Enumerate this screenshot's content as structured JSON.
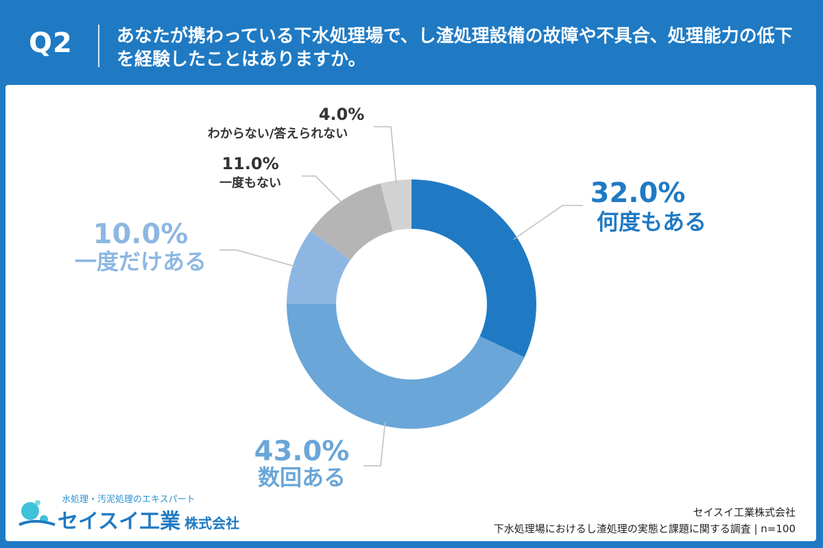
{
  "header": {
    "q_label": "Q2",
    "question": "あなたが携わっている下水処理場で、し渣処理設備の故障や不具合、処理能力の低下を経験したことはありますか。"
  },
  "chart_data": {
    "type": "pie",
    "donut": true,
    "slices": [
      {
        "label": "何度もある",
        "value": 32.0,
        "value_label": "32.0%",
        "color": "#1f7ac3"
      },
      {
        "label": "数回ある",
        "value": 43.0,
        "value_label": "43.0%",
        "color": "#6aa6d8"
      },
      {
        "label": "一度だけある",
        "value": 10.0,
        "value_label": "10.0%",
        "color": "#8db7e2"
      },
      {
        "label": "一度もない",
        "value": 11.0,
        "value_label": "11.0%",
        "color": "#b5b5b5"
      },
      {
        "label": "わからない/答えられない",
        "value": 4.0,
        "value_label": "4.0%",
        "color": "#d2d2d2"
      }
    ]
  },
  "logo": {
    "tagline": "水処理・汚泥処理のエキスパート",
    "name": "セイスイ工業",
    "suffix": "株式会社",
    "colors": {
      "primary": "#1f7ac3",
      "accent": "#3fc1d9"
    }
  },
  "credit": {
    "company": "セイスイ工業株式会社",
    "survey": "下水処理場におけるし渣処理の実態と課題に関する調査 | n=100"
  }
}
